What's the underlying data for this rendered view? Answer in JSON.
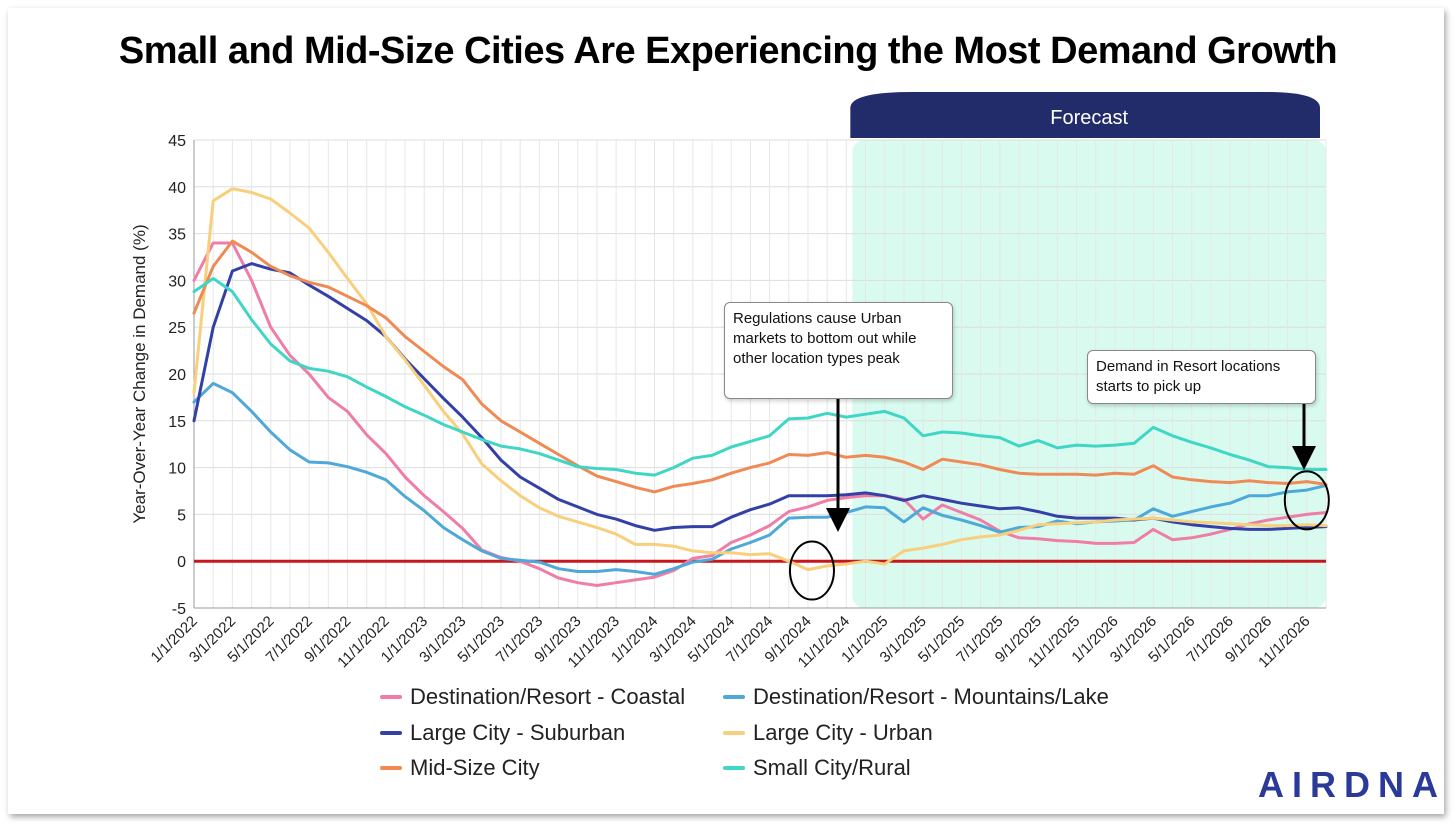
{
  "title": "Small and Mid-Size Cities Are Experiencing the Most Demand Growth",
  "forecast_label": "Forecast",
  "logo_text": "AIRDNA",
  "callouts": {
    "urban": "Regulations cause Urban markets to bottom out while other location types peak",
    "resort": "Demand in Resort locations starts to pick up"
  },
  "chart_data": {
    "type": "line",
    "title": "Small and Mid-Size Cities Are Experiencing the Most Demand Growth",
    "xlabel": "",
    "ylabel": "Year-Over-Year Change in Demand (%)",
    "ylim": [
      -5,
      45
    ],
    "yticks": [
      -5,
      0,
      5,
      10,
      15,
      20,
      25,
      30,
      35,
      40,
      45
    ],
    "xticks": [
      "1/1/2022",
      "3/1/2022",
      "5/1/2022",
      "7/1/2022",
      "9/1/2022",
      "11/1/2022",
      "1/1/2023",
      "3/1/2023",
      "5/1/2023",
      "7/1/2023",
      "9/1/2023",
      "11/1/2023",
      "1/1/2024",
      "3/1/2024",
      "5/1/2024",
      "7/1/2024",
      "9/1/2024",
      "11/1/2024",
      "1/1/2025",
      "3/1/2025",
      "5/1/2025",
      "7/1/2025",
      "9/1/2025",
      "11/1/2025",
      "1/1/2026",
      "3/1/2026",
      "5/1/2026",
      "7/1/2026",
      "9/1/2026",
      "11/1/2026"
    ],
    "x_start": "1/1/2022",
    "x_step": "1 month",
    "forecast_start": "11/1/2024",
    "grid": true,
    "reference_line": 0,
    "legend_position": "bottom",
    "series": [
      {
        "name": "Destination/Resort - Coastal",
        "color": "#f07ca8",
        "values": [
          30,
          34,
          34,
          30,
          25,
          22,
          20,
          17.5,
          16,
          13.5,
          11.5,
          9,
          7,
          5.3,
          3.5,
          1.2,
          0.4,
          0,
          -0.8,
          -1.8,
          -2.3,
          -2.6,
          -2.3,
          -2,
          -1.7,
          -1,
          0.3,
          0.6,
          2,
          2.8,
          3.8,
          5.3,
          5.8,
          6.5,
          6.8,
          7,
          7,
          6.6,
          4.5,
          6,
          5.2,
          4.4,
          3.2,
          2.5,
          2.4,
          2.2,
          2.1,
          1.9,
          1.9,
          2,
          3.4,
          2.3,
          2.5,
          2.9,
          3.4,
          4,
          4.4,
          4.7,
          5,
          5.2
        ]
      },
      {
        "name": "Destination/Resort - Mountains/Lake",
        "color": "#4ea8d8",
        "values": [
          17,
          19,
          18,
          16,
          13.8,
          11.9,
          10.6,
          10.5,
          10.1,
          9.5,
          8.7,
          6.9,
          5.4,
          3.6,
          2.3,
          1.1,
          0.3,
          0.1,
          -0.1,
          -0.8,
          -1.1,
          -1.1,
          -0.9,
          -1.1,
          -1.4,
          -0.8,
          -0.1,
          0.2,
          1.3,
          2,
          2.8,
          4.6,
          4.7,
          4.7,
          5.2,
          5.8,
          5.7,
          4.2,
          5.7,
          4.9,
          4.4,
          3.8,
          3.1,
          3.6,
          3.7,
          4.3,
          4,
          4.2,
          4.3,
          4.4,
          5.6,
          4.8,
          5.3,
          5.8,
          6.2,
          7,
          7,
          7.4,
          7.6,
          8.1
        ]
      },
      {
        "name": "Large City - Suburban",
        "color": "#3340a6",
        "values": [
          15,
          25,
          31,
          31.8,
          31.2,
          30.8,
          29.5,
          28.3,
          27,
          25.7,
          24,
          21.6,
          19.5,
          17.4,
          15.4,
          13.2,
          10.8,
          9,
          7.8,
          6.6,
          5.8,
          5,
          4.5,
          3.8,
          3.3,
          3.6,
          3.7,
          3.7,
          4.7,
          5.5,
          6.1,
          7,
          7,
          7,
          7.1,
          7.3,
          7,
          6.5,
          7,
          6.6,
          6.2,
          5.9,
          5.6,
          5.7,
          5.3,
          4.8,
          4.6,
          4.6,
          4.6,
          4.4,
          4.6,
          4.2,
          3.9,
          3.7,
          3.5,
          3.4,
          3.4,
          3.5,
          3.6,
          3.7
        ]
      },
      {
        "name": "Large City - Urban",
        "color": "#f8cf7c",
        "values": [
          18,
          38.5,
          39.8,
          39.4,
          38.7,
          37.2,
          35.6,
          33,
          30.2,
          27.5,
          24,
          21.5,
          18.8,
          16,
          13.6,
          10.4,
          8.6,
          7,
          5.7,
          4.8,
          4.2,
          3.6,
          2.9,
          1.8,
          1.8,
          1.6,
          1.1,
          0.9,
          0.9,
          0.7,
          0.8,
          0,
          -0.9,
          -0.5,
          -0.3,
          0,
          -0.3,
          1.1,
          1.4,
          1.8,
          2.3,
          2.6,
          2.8,
          3.3,
          3.9,
          4,
          4.1,
          4.2,
          4.4,
          4.5,
          4.6,
          4.4,
          4.2,
          4.1,
          4,
          3.9,
          3.8,
          3.8,
          3.9,
          3.8
        ]
      },
      {
        "name": "Mid-Size City",
        "color": "#ef8a55",
        "values": [
          26.5,
          31.5,
          34.2,
          33,
          31.5,
          30.5,
          29.8,
          29.3,
          28.3,
          27.3,
          26,
          24,
          22.4,
          20.8,
          19.4,
          16.8,
          15,
          13.8,
          12.6,
          11.4,
          10.2,
          9.1,
          8.5,
          7.9,
          7.4,
          8,
          8.3,
          8.7,
          9.4,
          10,
          10.5,
          11.4,
          11.3,
          11.6,
          11.1,
          11.3,
          11.1,
          10.6,
          9.8,
          10.9,
          10.6,
          10.3,
          9.8,
          9.4,
          9.3,
          9.3,
          9.3,
          9.2,
          9.4,
          9.3,
          10.2,
          9,
          8.7,
          8.5,
          8.4,
          8.6,
          8.4,
          8.3,
          8.5,
          8.2
        ]
      },
      {
        "name": "Small City/Rural",
        "color": "#3fd6c6",
        "values": [
          28.8,
          30.2,
          28.8,
          25.8,
          23.2,
          21.4,
          20.6,
          20.3,
          19.7,
          18.6,
          17.6,
          16.5,
          15.6,
          14.6,
          13.8,
          13,
          12.3,
          12,
          11.5,
          10.8,
          10.1,
          9.9,
          9.8,
          9.4,
          9.2,
          10,
          11,
          11.3,
          12.2,
          12.8,
          13.4,
          15.2,
          15.3,
          15.8,
          15.4,
          15.7,
          16,
          15.3,
          13.4,
          13.8,
          13.7,
          13.4,
          13.2,
          12.3,
          12.9,
          12.1,
          12.4,
          12.3,
          12.4,
          12.6,
          14.3,
          13.4,
          12.7,
          12.1,
          11.4,
          10.8,
          10.1,
          10,
          9.8,
          9.8
        ]
      }
    ]
  }
}
